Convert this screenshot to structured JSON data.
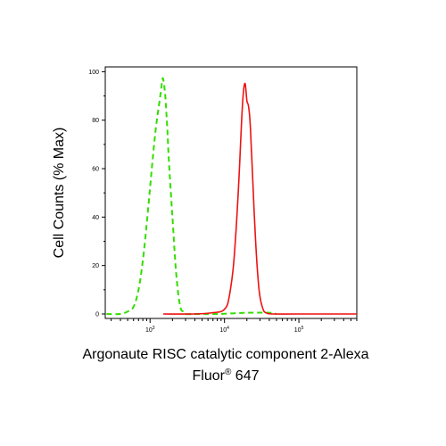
{
  "chart_data": {
    "type": "line",
    "title": "",
    "xlabel": "Argonaute RISC catalytic component 2-Alexa Fluor® 647",
    "xlabel_line1": "Argonaute RISC catalytic component 2-Alexa",
    "xlabel_line2_base": "Fluor",
    "xlabel_line2_sup": "®",
    "xlabel_line2_rest": " 647",
    "ylabel": "Cell Counts (% Max)",
    "x_scale": "log",
    "xlim": [
      250,
      600000
    ],
    "ylim": [
      0,
      102
    ],
    "grid": false,
    "legend": "none",
    "y_ticks": [
      0,
      20,
      40,
      60,
      80,
      100
    ],
    "x_ticks": [
      {
        "base": "10",
        "exp": "3",
        "value": 1000
      },
      {
        "base": "10",
        "exp": "4",
        "value": 10000
      },
      {
        "base": "10",
        "exp": "5",
        "value": 100000
      }
    ],
    "series": [
      {
        "color": "#33dd00",
        "dash": true,
        "x": [
          260,
          400,
          500,
          600,
          700,
          800,
          900,
          1000,
          1100,
          1200,
          1300,
          1400,
          1450,
          1500,
          1600,
          1700,
          1800,
          2000,
          2200,
          2400,
          2600,
          2800,
          3000,
          4000,
          8000,
          20000,
          40000,
          50000
        ],
        "y": [
          0,
          0,
          1,
          3,
          10,
          22,
          37,
          52,
          66,
          77,
          85,
          92,
          96,
          97,
          90,
          77,
          62,
          40,
          20,
          8,
          2,
          1,
          0,
          0,
          0,
          0.5,
          0.5,
          0
        ]
      },
      {
        "color": "#ee1111",
        "dash": false,
        "x": [
          1500,
          4000,
          7000,
          9000,
          10000,
          11000,
          12000,
          13000,
          14000,
          15000,
          16000,
          17000,
          18000,
          19000,
          20000,
          21000,
          22000,
          23000,
          24000,
          26000,
          28000,
          30000,
          33000,
          36000,
          45000,
          100000,
          600000
        ],
        "y": [
          0,
          0,
          0.5,
          1,
          2,
          4,
          10,
          18,
          30,
          45,
          62,
          80,
          92,
          95,
          88,
          86,
          80,
          68,
          55,
          32,
          16,
          7,
          2,
          0.5,
          0,
          0,
          0
        ]
      }
    ]
  }
}
